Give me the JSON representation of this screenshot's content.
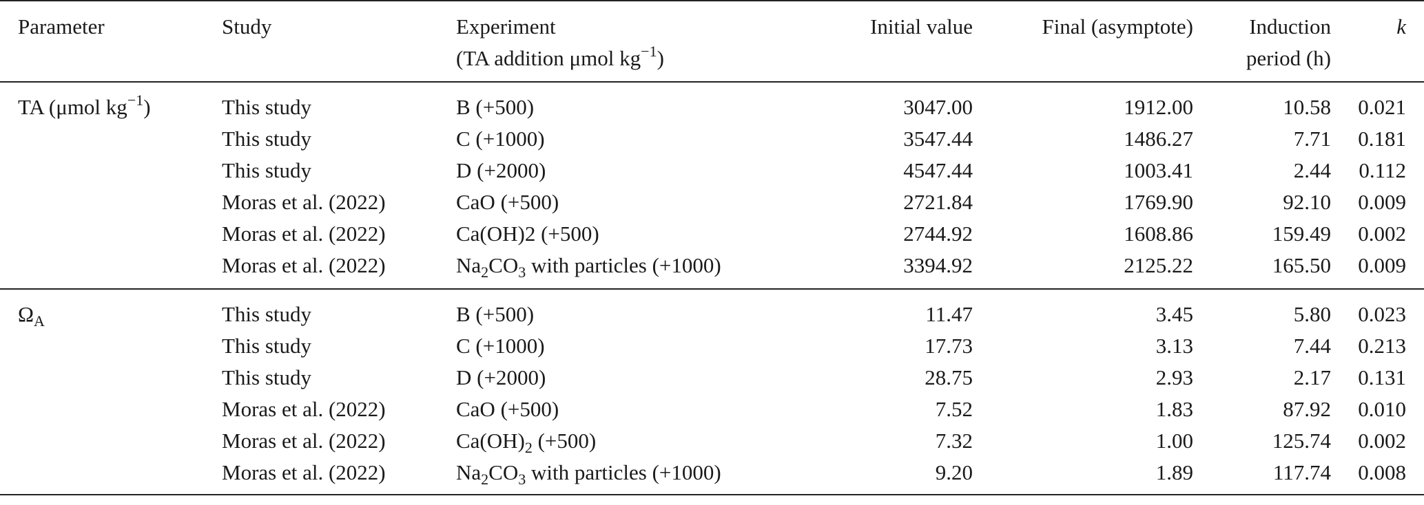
{
  "table": {
    "headers": {
      "parameter": "Parameter",
      "study": "Study",
      "experiment_line1": "Experiment",
      "experiment_line2": "(TA addition μmol kg",
      "experiment_line2_sup": "−1",
      "experiment_line2_end": ")",
      "initial": "Initial value",
      "final": "Final (asymptote)",
      "induction_line1": "Induction",
      "induction_line2": "period (h)",
      "k": "k"
    },
    "groups": [
      {
        "parameter_main": "TA (μmol kg",
        "parameter_sup": "−1",
        "parameter_end": ")",
        "parameter_sub": "",
        "rows": [
          {
            "study": "This study",
            "exp_pre": "B (+500)",
            "exp_sub": "",
            "exp_mid": "",
            "exp_sub2": "",
            "exp_post": "",
            "initial": "3047.00",
            "final": "1912.00",
            "induction": "10.58",
            "k": "0.021"
          },
          {
            "study": "This study",
            "exp_pre": "C (+1000)",
            "exp_sub": "",
            "exp_mid": "",
            "exp_sub2": "",
            "exp_post": "",
            "initial": "3547.44",
            "final": "1486.27",
            "induction": "7.71",
            "k": "0.181"
          },
          {
            "study": "This study",
            "exp_pre": "D (+2000)",
            "exp_sub": "",
            "exp_mid": "",
            "exp_sub2": "",
            "exp_post": "",
            "initial": "4547.44",
            "final": "1003.41",
            "induction": "2.44",
            "k": "0.112"
          },
          {
            "study": "Moras et al. (2022)",
            "exp_pre": "CaO (+500)",
            "exp_sub": "",
            "exp_mid": "",
            "exp_sub2": "",
            "exp_post": "",
            "initial": "2721.84",
            "final": "1769.90",
            "induction": "92.10",
            "k": "0.009"
          },
          {
            "study": "Moras et al. (2022)",
            "exp_pre": "Ca(OH)2 (+500)",
            "exp_sub": "",
            "exp_mid": "",
            "exp_sub2": "",
            "exp_post": "",
            "initial": "2744.92",
            "final": "1608.86",
            "induction": "159.49",
            "k": "0.002"
          },
          {
            "study": "Moras et al. (2022)",
            "exp_pre": "Na",
            "exp_sub": "2",
            "exp_mid": "CO",
            "exp_sub2": "3",
            "exp_post": " with particles (+1000)",
            "initial": "3394.92",
            "final": "2125.22",
            "induction": "165.50",
            "k": "0.009"
          }
        ]
      },
      {
        "parameter_main": "Ω",
        "parameter_sup": "",
        "parameter_end": "",
        "parameter_sub": "A",
        "rows": [
          {
            "study": "This study",
            "exp_pre": "B (+500)",
            "exp_sub": "",
            "exp_mid": "",
            "exp_sub2": "",
            "exp_post": "",
            "initial": "11.47",
            "final": "3.45",
            "induction": "5.80",
            "k": "0.023"
          },
          {
            "study": "This study",
            "exp_pre": "C (+1000)",
            "exp_sub": "",
            "exp_mid": "",
            "exp_sub2": "",
            "exp_post": "",
            "initial": "17.73",
            "final": "3.13",
            "induction": "7.44",
            "k": "0.213"
          },
          {
            "study": "This study",
            "exp_pre": "D (+2000)",
            "exp_sub": "",
            "exp_mid": "",
            "exp_sub2": "",
            "exp_post": "",
            "initial": "28.75",
            "final": "2.93",
            "induction": "2.17",
            "k": "0.131"
          },
          {
            "study": "Moras et al. (2022)",
            "exp_pre": "CaO (+500)",
            "exp_sub": "",
            "exp_mid": "",
            "exp_sub2": "",
            "exp_post": "",
            "initial": "7.52",
            "final": "1.83",
            "induction": "87.92",
            "k": "0.010"
          },
          {
            "study": "Moras et al. (2022)",
            "exp_pre": "Ca(OH)",
            "exp_sub": "2",
            "exp_mid": " (+500)",
            "exp_sub2": "",
            "exp_post": "",
            "initial": "7.32",
            "final": "1.00",
            "induction": "125.74",
            "k": "0.002"
          },
          {
            "study": "Moras et al. (2022)",
            "exp_pre": "Na",
            "exp_sub": "2",
            "exp_mid": "CO",
            "exp_sub2": "3",
            "exp_post": " with particles (+1000)",
            "initial": "9.20",
            "final": "1.89",
            "induction": "117.74",
            "k": "0.008"
          }
        ]
      }
    ]
  }
}
